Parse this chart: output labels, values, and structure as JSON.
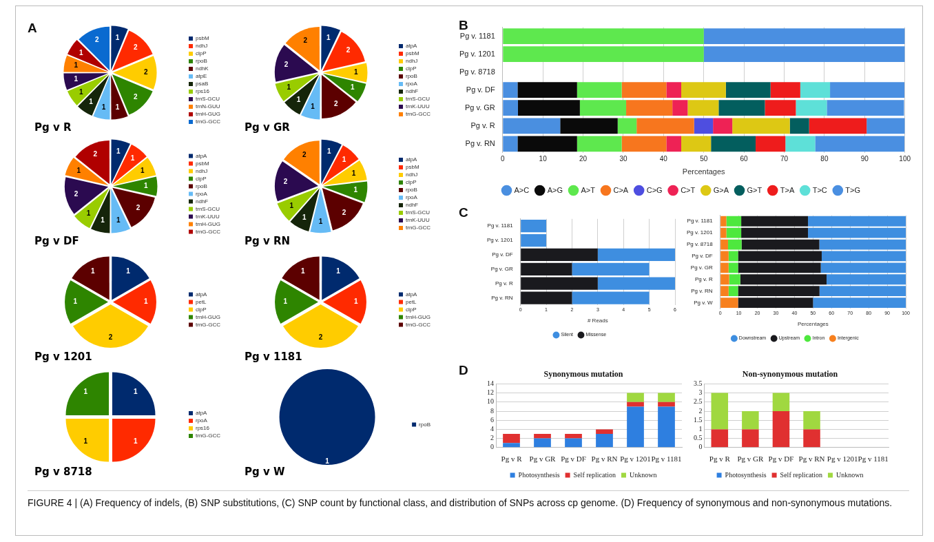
{
  "chart_data": [
    {
      "type": "pie",
      "title": "Pg v R",
      "legend": "right",
      "data_labels": true,
      "annotations": [
        "A",
        "FIGURE 4 | (A) Frequency of indels, (B) SNP substitutions, (C) SNP count by functional class, and distribution of SNPs across cp genome. (D) Frequency of synonymous and non-synonymous mutations."
      ],
      "categories": [
        "psbM",
        "ndhJ",
        "clpP",
        "rpoB",
        "ndhK",
        "atpE",
        "psaB",
        "rps16",
        "trnS-GCU",
        "trnN-GUU",
        "trnH-GUG",
        "trnG-GCC"
      ],
      "values": [
        1,
        2,
        2,
        2,
        1,
        1,
        1,
        1,
        1,
        1,
        1,
        2
      ],
      "colors": [
        "#002a6e",
        "#ff2a00",
        "#ffcc00",
        "#2e8500",
        "#5c0000",
        "#66bbf5",
        "#15250a",
        "#99cc00",
        "#2b0a50",
        "#ff8000",
        "#b00000",
        "#0a6ad0"
      ]
    },
    {
      "type": "pie",
      "title": "Pg v GR",
      "legend": "right",
      "data_labels": true,
      "categories": [
        "atpA",
        "psbM",
        "ndhJ",
        "clpP",
        "rpoB",
        "rpoA",
        "ndhF",
        "trnS-GCU",
        "trnK-UUU",
        "trnG-GCC"
      ],
      "values": [
        1,
        2,
        1,
        1,
        2,
        1,
        1,
        1,
        2,
        2
      ],
      "colors": [
        "#002a6e",
        "#ff2a00",
        "#ffcc00",
        "#2e8500",
        "#5c0000",
        "#66bbf5",
        "#15250a",
        "#99cc00",
        "#2b0a50",
        "#ff8000"
      ]
    },
    {
      "type": "pie",
      "title": "Pg v DF",
      "legend": "right",
      "data_labels": true,
      "categories": [
        "atpA",
        "psbM",
        "ndhJ",
        "clpP",
        "rpoB",
        "rpoA",
        "ndhF",
        "trnS-GCU",
        "trnK-UUU",
        "trnH-GUG",
        "trnG-GCC"
      ],
      "values": [
        1,
        1,
        1,
        1,
        2,
        1,
        1,
        1,
        2,
        1,
        2
      ],
      "colors": [
        "#002a6e",
        "#ff2a00",
        "#ffcc00",
        "#2e8500",
        "#5c0000",
        "#66bbf5",
        "#15250a",
        "#99cc00",
        "#2b0a50",
        "#ff8000",
        "#b00000"
      ]
    },
    {
      "type": "pie",
      "title": "Pg v RN",
      "legend": "right",
      "data_labels": true,
      "categories": [
        "atpA",
        "psbM",
        "ndhJ",
        "clpP",
        "rpoB",
        "rpoA",
        "ndhF",
        "trnS-GCU",
        "trnK-UUU",
        "trnG-GCC"
      ],
      "values": [
        1,
        1,
        1,
        1,
        2,
        1,
        1,
        1,
        2,
        2
      ],
      "colors": [
        "#002a6e",
        "#ff2a00",
        "#ffcc00",
        "#2e8500",
        "#5c0000",
        "#66bbf5",
        "#15250a",
        "#99cc00",
        "#2b0a50",
        "#ff8000"
      ]
    },
    {
      "type": "pie",
      "title": "Pg v 1201",
      "legend": "right",
      "data_labels": true,
      "categories": [
        "atpA",
        "petL",
        "clpP",
        "trnH-GUG",
        "trnG-GCC"
      ],
      "values": [
        1,
        1,
        2,
        1,
        1
      ],
      "colors": [
        "#002a6e",
        "#ff2a00",
        "#ffcc00",
        "#2e8500",
        "#5c0000"
      ]
    },
    {
      "type": "pie",
      "title": "Pg v 1181",
      "legend": "right",
      "data_labels": true,
      "categories": [
        "atpA",
        "petL",
        "clpP",
        "trnH-GUG",
        "trnG-GCC"
      ],
      "values": [
        1,
        1,
        2,
        1,
        1
      ],
      "colors": [
        "#002a6e",
        "#ff2a00",
        "#ffcc00",
        "#2e8500",
        "#5c0000"
      ]
    },
    {
      "type": "pie",
      "title": "Pg v 8718",
      "legend": "right",
      "data_labels": true,
      "categories": [
        "atpA",
        "rpoA",
        "rps16",
        "trnG-GCC"
      ],
      "values": [
        1,
        1,
        1,
        1
      ],
      "colors": [
        "#002a6e",
        "#ff2a00",
        "#ffcc00",
        "#2e8500"
      ]
    },
    {
      "type": "pie",
      "title": "Pg v W",
      "legend": "right",
      "data_labels": true,
      "categories": [
        "rpoB"
      ],
      "values": [
        1
      ],
      "colors": [
        "#002a6e"
      ]
    },
    {
      "type": "bar",
      "orientation": "horizontal",
      "stacked": true,
      "xlabel": "Percentages",
      "legend": "bottom",
      "grid": "x",
      "annotations": [
        "B"
      ],
      "categories": [
        "Pg v. 1181",
        "Pg v. 1201",
        "Pg v. 8718",
        "Pg v. DF",
        "Pg v. GR",
        "Pg v. R",
        "Pg v. RN"
      ],
      "xlim": [
        0,
        100
      ],
      "xticks": [
        0,
        10,
        20,
        30,
        40,
        50,
        60,
        70,
        80,
        90,
        100
      ],
      "series": [
        {
          "name": "A>C",
          "color": "#4a8fe0",
          "values": [
            null,
            null,
            null,
            3.7,
            3.8,
            14.3,
            3.7
          ]
        },
        {
          "name": "A>G",
          "color": "#0a0a0a",
          "values": [
            null,
            null,
            null,
            14.8,
            15.4,
            14.3,
            14.8
          ]
        },
        {
          "name": "A>T",
          "color": "#5ee84e",
          "values": [
            50,
            50,
            null,
            11.1,
            11.5,
            4.7,
            11.1
          ]
        },
        {
          "name": "C>A",
          "color": "#f7761e",
          "values": [
            null,
            null,
            null,
            11.1,
            11.5,
            14.3,
            11.1
          ]
        },
        {
          "name": "C>G",
          "color": "#4e4ee0",
          "values": [
            null,
            null,
            null,
            null,
            null,
            4.7,
            null
          ]
        },
        {
          "name": "C>T",
          "color": "#ee2255",
          "values": [
            null,
            null,
            null,
            3.7,
            3.8,
            4.8,
            3.7
          ]
        },
        {
          "name": "G>A",
          "color": "#ddc814",
          "values": [
            null,
            null,
            null,
            11.1,
            7.7,
            14.3,
            7.4
          ]
        },
        {
          "name": "G>T",
          "color": "#035e5e",
          "values": [
            null,
            null,
            null,
            11.1,
            11.5,
            4.8,
            11.1
          ]
        },
        {
          "name": "T>A",
          "color": "#ee1c1c",
          "values": [
            null,
            null,
            null,
            7.4,
            7.7,
            14.3,
            7.4
          ]
        },
        {
          "name": "T>C",
          "color": "#5ee0d8",
          "values": [
            null,
            null,
            null,
            7.4,
            7.7,
            null,
            7.4
          ]
        },
        {
          "name": "T>G",
          "color": "#4a8fe1",
          "values": [
            50,
            50,
            null,
            18.5,
            19.2,
            9.5,
            22.2
          ]
        }
      ]
    },
    {
      "type": "bar",
      "orientation": "horizontal",
      "stacked": true,
      "xlabel": "# Reads",
      "legend": "bottom",
      "grid": "x",
      "annotations": [
        "C"
      ],
      "categories": [
        "Pg v. 1181",
        "Pg v. 1201",
        "Pg v. DF",
        "Pg v. GR",
        "Pg v. R",
        "Pg v. RN"
      ],
      "xlim": [
        0,
        6
      ],
      "xticks": [
        0,
        1,
        2,
        3,
        4,
        5,
        6
      ],
      "series": [
        {
          "name": "Missense",
          "color": "#1a1a1e",
          "values": [
            null,
            null,
            3,
            2,
            3,
            2
          ]
        },
        {
          "name": "Silent",
          "color": "#3e8ee0",
          "values": [
            1,
            1,
            3,
            3,
            3,
            3
          ]
        }
      ]
    },
    {
      "type": "bar",
      "orientation": "horizontal",
      "stacked": true,
      "xlabel": "Percentages",
      "legend": "bottom",
      "grid": "x",
      "categories": [
        "Pg v. 1181",
        "Pg v. 1201",
        "Pg v. 8718",
        "Pg v. DF",
        "Pg v. GR",
        "Pg v. R",
        "Pg v. RN",
        "Pg v. W"
      ],
      "xlim": [
        0,
        100
      ],
      "xticks": [
        0,
        10,
        20,
        30,
        40,
        50,
        60,
        70,
        80,
        90,
        100
      ],
      "series": [
        {
          "name": "Intergenic",
          "color": "#f7801e",
          "values": [
            3.3,
            3.3,
            4.2,
            4.5,
            4.5,
            4.8,
            4.5,
            9.6
          ]
        },
        {
          "name": "Intron",
          "color": "#4ee83e",
          "values": [
            8,
            8,
            7.3,
            5.1,
            5.1,
            6,
            5.1,
            null
          ]
        },
        {
          "name": "Upstream",
          "color": "#1a1a1e",
          "values": [
            36,
            36,
            41.9,
            45.1,
            44.6,
            46.5,
            43.9,
            40.4
          ]
        },
        {
          "name": "Downstream",
          "color": "#3e8ee0",
          "values": [
            52.7,
            52.7,
            46.6,
            45.3,
            45.8,
            42.7,
            46.5,
            50
          ]
        }
      ]
    },
    {
      "type": "bar",
      "stacked": true,
      "title": "Synonymous mutation",
      "legend": "bottom",
      "grid": "y",
      "annotations": [
        "D"
      ],
      "categories": [
        "Pg v R",
        "Pg v GR",
        "Pg v DF",
        "Pg v RN",
        "Pg v 1201",
        "Pg v 1181"
      ],
      "ylim": [
        0,
        14
      ],
      "yticks": [
        0,
        2,
        4,
        6,
        8,
        10,
        12,
        14
      ],
      "series": [
        {
          "name": "Photosynthesis",
          "color": "#2e7fe0",
          "values": [
            1,
            2,
            2,
            3,
            9,
            9
          ]
        },
        {
          "name": "Self replication",
          "color": "#e03030",
          "values": [
            2,
            1,
            1,
            1,
            1,
            1
          ]
        },
        {
          "name": "Unknown",
          "color": "#a0d840",
          "values": [
            null,
            null,
            null,
            null,
            2,
            2
          ]
        }
      ]
    },
    {
      "type": "bar",
      "stacked": true,
      "title": "Non-synonymous mutation",
      "legend": "bottom",
      "grid": "y",
      "categories": [
        "Pg v R",
        "Pg v GR",
        "Pg v DF",
        "Pg v RN",
        "Pg v 1201",
        "Pg v 1181"
      ],
      "ylim": [
        0,
        3.5
      ],
      "yticks": [
        0,
        0.5,
        1,
        1.5,
        2,
        2.5,
        3,
        3.5
      ],
      "series": [
        {
          "name": "Photosynthesis",
          "color": "#2e7fe0",
          "values": [
            null,
            null,
            null,
            null,
            null,
            null
          ]
        },
        {
          "name": "Self replication",
          "color": "#e03030",
          "values": [
            1,
            1,
            2,
            1,
            null,
            null
          ]
        },
        {
          "name": "Unknown",
          "color": "#a0d840",
          "values": [
            2,
            1,
            1,
            1,
            null,
            null
          ]
        }
      ]
    }
  ]
}
